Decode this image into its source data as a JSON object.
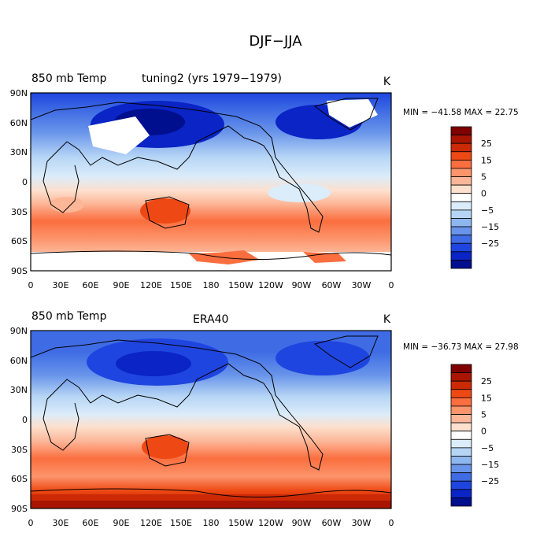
{
  "figure": {
    "title": "DJF−JJA"
  },
  "colorscale": {
    "levels": [
      "25",
      "15",
      "5",
      "0",
      "−5",
      "−15",
      "−25"
    ],
    "colors": [
      "#7f0000",
      "#a91502",
      "#cc2a06",
      "#ee4914",
      "#fb6e3f",
      "#fc946c",
      "#fcb799",
      "#fde0cd",
      "#ffffff",
      "#dbecfa",
      "#b6d5f5",
      "#8fb7ef",
      "#6894ea",
      "#3f6ce4",
      "#1f45e0",
      "#0a24c6",
      "#000f8e"
    ]
  },
  "chart_data": [
    {
      "type": "heatmap",
      "title": "850 mb Temp   tuning2 (yrs 1979−1979)",
      "case": "tuning2 (yrs 1979−1979)",
      "variable": "850 mb Temp",
      "units": "K",
      "min": -41.58,
      "max": 22.75,
      "minmax_text": "MIN = −41.58 MAX =  22.75",
      "xticks": [
        "0",
        "30E",
        "60E",
        "90E",
        "120E",
        "150E",
        "180",
        "150W",
        "120W",
        "90W",
        "60W",
        "30W",
        "0"
      ],
      "yticks": [
        "90N",
        "60N",
        "30N",
        "0",
        "30S",
        "60S",
        "90S"
      ],
      "masked_regions": [
        "Tibetan Plateau / Central Asia highlands",
        "Greenland",
        "Antarctica"
      ],
      "zonal_mean_bands": [
        {
          "lat": "90N-60N",
          "value": -25
        },
        {
          "lat": "60N-30N",
          "value": -15
        },
        {
          "lat": "30N-0",
          "value": -5
        },
        {
          "lat": "0-30S",
          "value": 5
        },
        {
          "lat": "30S-60S",
          "value": 10
        },
        {
          "lat": "60S-90S",
          "value": 10
        }
      ]
    },
    {
      "type": "heatmap",
      "title": "850 mb Temp   ERA40",
      "case": "ERA40",
      "variable": "850 mb Temp",
      "units": "K",
      "min": -36.73,
      "max": 27.98,
      "minmax_text": "MIN = −36.73 MAX =  27.98",
      "xticks": [
        "0",
        "30E",
        "60E",
        "90E",
        "120E",
        "150E",
        "180",
        "150W",
        "120W",
        "90W",
        "60W",
        "30W",
        "0"
      ],
      "yticks": [
        "90N",
        "60N",
        "30N",
        "0",
        "30S",
        "60S",
        "90S"
      ],
      "masked_regions": [],
      "zonal_mean_bands": [
        {
          "lat": "90N-60N",
          "value": -22
        },
        {
          "lat": "60N-30N",
          "value": -15
        },
        {
          "lat": "30N-0",
          "value": -5
        },
        {
          "lat": "0-30S",
          "value": 5
        },
        {
          "lat": "30S-60S",
          "value": 10
        },
        {
          "lat": "60S-90S",
          "value": 20
        }
      ]
    }
  ]
}
